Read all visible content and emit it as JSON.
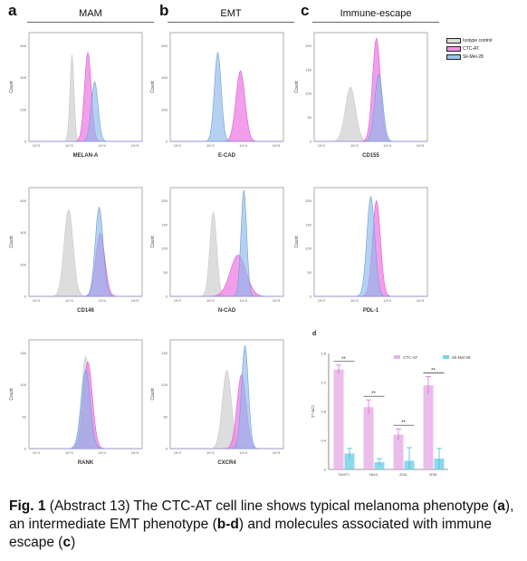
{
  "headings": {
    "letter_a": "a",
    "letter_b": "b",
    "letter_c": "c",
    "col_a": "MAM",
    "col_b": "EMT",
    "col_c": "Immune-escape"
  },
  "legend": [
    {
      "label": "Isotype control",
      "color": "#dcdcdc"
    },
    {
      "label": "CTC-AT",
      "color": "#f08ee6"
    },
    {
      "label": "Sk-Mel-28",
      "color": "#9dc3ec"
    }
  ],
  "colors": {
    "isotype": "#d9d9d9",
    "ctc": "#ee7ee3",
    "skmel": "#8db8ea",
    "bar_ctc": "#e7b2e7",
    "bar_sk": "#78d2e6"
  },
  "histograms": [
    {
      "id": "melan-a",
      "col": 0,
      "row": 0,
      "xlabel": "MELAN-A",
      "ylabel": "Count",
      "yticks": [
        "0",
        "200",
        "400",
        "600"
      ],
      "xticks": [
        "10^2",
        "10^3",
        "10^4",
        "10^5"
      ],
      "iso": {
        "mu": 0.38,
        "sd": 0.018,
        "h": 0.8
      },
      "ctc": {
        "mu": 0.52,
        "sd": 0.03,
        "h": 0.82
      },
      "sk": {
        "mu": 0.58,
        "sd": 0.03,
        "h": 0.55
      }
    },
    {
      "id": "e-cad",
      "col": 1,
      "row": 0,
      "xlabel": "E-CAD",
      "ylabel": "Count",
      "yticks": [
        "0",
        "200",
        "400",
        "600"
      ],
      "xticks": [
        "10^2",
        "10^3",
        "10^4",
        "10^5"
      ],
      "iso": {
        "mu": 0.0,
        "sd": 0.0,
        "h": 0.0
      },
      "ctc": {
        "mu": 0.62,
        "sd": 0.04,
        "h": 0.65
      },
      "sk": {
        "mu": 0.42,
        "sd": 0.03,
        "h": 0.82
      }
    },
    {
      "id": "cd155",
      "col": 2,
      "row": 0,
      "xlabel": "CD155",
      "ylabel": "Count",
      "yticks": [
        "0",
        "50",
        "100",
        "150",
        "200"
      ],
      "xticks": [
        "10^2",
        "10^3",
        "10^4",
        "10^5"
      ],
      "iso": {
        "mu": 0.32,
        "sd": 0.045,
        "h": 0.5
      },
      "ctc": {
        "mu": 0.55,
        "sd": 0.035,
        "h": 0.95
      },
      "sk": {
        "mu": 0.57,
        "sd": 0.035,
        "h": 0.62
      }
    },
    {
      "id": "cd146",
      "col": 0,
      "row": 1,
      "xlabel": "CD146",
      "ylabel": "Count",
      "yticks": [
        "0",
        "200",
        "400",
        "600"
      ],
      "xticks": [
        "10^2",
        "10^3",
        "10^4",
        "10^5"
      ],
      "iso": {
        "mu": 0.35,
        "sd": 0.04,
        "h": 0.8
      },
      "ctc": {
        "mu": 0.63,
        "sd": 0.04,
        "h": 0.58
      },
      "sk": {
        "mu": 0.62,
        "sd": 0.035,
        "h": 0.82
      }
    },
    {
      "id": "n-cad",
      "col": 1,
      "row": 1,
      "xlabel": "N-CAD",
      "ylabel": "Count",
      "yticks": [
        "0",
        "50",
        "100",
        "150",
        "200"
      ],
      "xticks": [
        "10^2",
        "10^3",
        "10^4",
        "10^5"
      ],
      "iso": {
        "mu": 0.38,
        "sd": 0.03,
        "h": 0.78
      },
      "ctc": {
        "mu": 0.6,
        "sd": 0.07,
        "h": 0.38
      },
      "sk": {
        "mu": 0.65,
        "sd": 0.025,
        "h": 0.98
      }
    },
    {
      "id": "pdl-1",
      "col": 2,
      "row": 1,
      "xlabel": "PDL-1",
      "ylabel": "Count",
      "yticks": [
        "0",
        "50",
        "100",
        "150",
        "200"
      ],
      "xticks": [
        "10^2",
        "10^3",
        "10^4",
        "10^5"
      ],
      "iso": {
        "mu": 0.0,
        "sd": 0.0,
        "h": 0.0
      },
      "ctc": {
        "mu": 0.55,
        "sd": 0.035,
        "h": 0.88
      },
      "sk": {
        "mu": 0.5,
        "sd": 0.035,
        "h": 0.92
      }
    },
    {
      "id": "rank",
      "col": 0,
      "row": 2,
      "xlabel": "RANK",
      "ylabel": "Count",
      "yticks": [
        "0",
        "50",
        "100",
        "150"
      ],
      "xticks": [
        "10^2",
        "10^3",
        "10^4",
        "10^5"
      ],
      "iso": {
        "mu": 0.5,
        "sd": 0.035,
        "h": 0.85
      },
      "ctc": {
        "mu": 0.52,
        "sd": 0.04,
        "h": 0.8
      },
      "sk": {
        "mu": 0.5,
        "sd": 0.04,
        "h": 0.72
      }
    },
    {
      "id": "cxcr4",
      "col": 1,
      "row": 2,
      "xlabel": "CXCR4",
      "ylabel": "Count",
      "yticks": [
        "0",
        "50",
        "100",
        "150"
      ],
      "xticks": [
        "10^2",
        "10^3",
        "10^4",
        "10^5"
      ],
      "iso": {
        "mu": 0.5,
        "sd": 0.04,
        "h": 0.72
      },
      "ctc": {
        "mu": 0.63,
        "sd": 0.04,
        "h": 0.68
      },
      "sk": {
        "mu": 0.66,
        "sd": 0.03,
        "h": 0.95
      }
    }
  ],
  "chart_data": {
    "type": "bar",
    "panel_label": "d",
    "title": "",
    "ylabel": "2^-ΔCt",
    "ylim": [
      0,
      1.6
    ],
    "yticks": [
      "0",
      "0.4",
      "0.8",
      "1.2",
      "1.6"
    ],
    "categories": [
      "TWIST1",
      "SNAI1",
      "ZEB1",
      "ZEB2"
    ],
    "series": [
      {
        "name": "CTC-AT",
        "values": [
          1.38,
          0.86,
          0.48,
          1.16
        ],
        "errors": [
          0.06,
          0.1,
          0.08,
          0.12
        ]
      },
      {
        "name": "Sk-Mel-28",
        "values": [
          0.22,
          0.1,
          0.12,
          0.15
        ],
        "errors": [
          0.07,
          0.05,
          0.18,
          0.14
        ]
      }
    ],
    "annotations": [
      "**",
      "**",
      "**",
      "**"
    ],
    "legend_position": "top-right"
  },
  "caption": {
    "fig": "Fig. 1",
    "t1": " (Abstract 13) The CTC-AT cell line shows typical melanoma phenotype (",
    "a": "a",
    "t2": "), an intermediate EMT phenotype (",
    "bd": "b-d",
    "t3": ") and molecules associated with immune escape (",
    "c": "c",
    "t4": ")"
  }
}
